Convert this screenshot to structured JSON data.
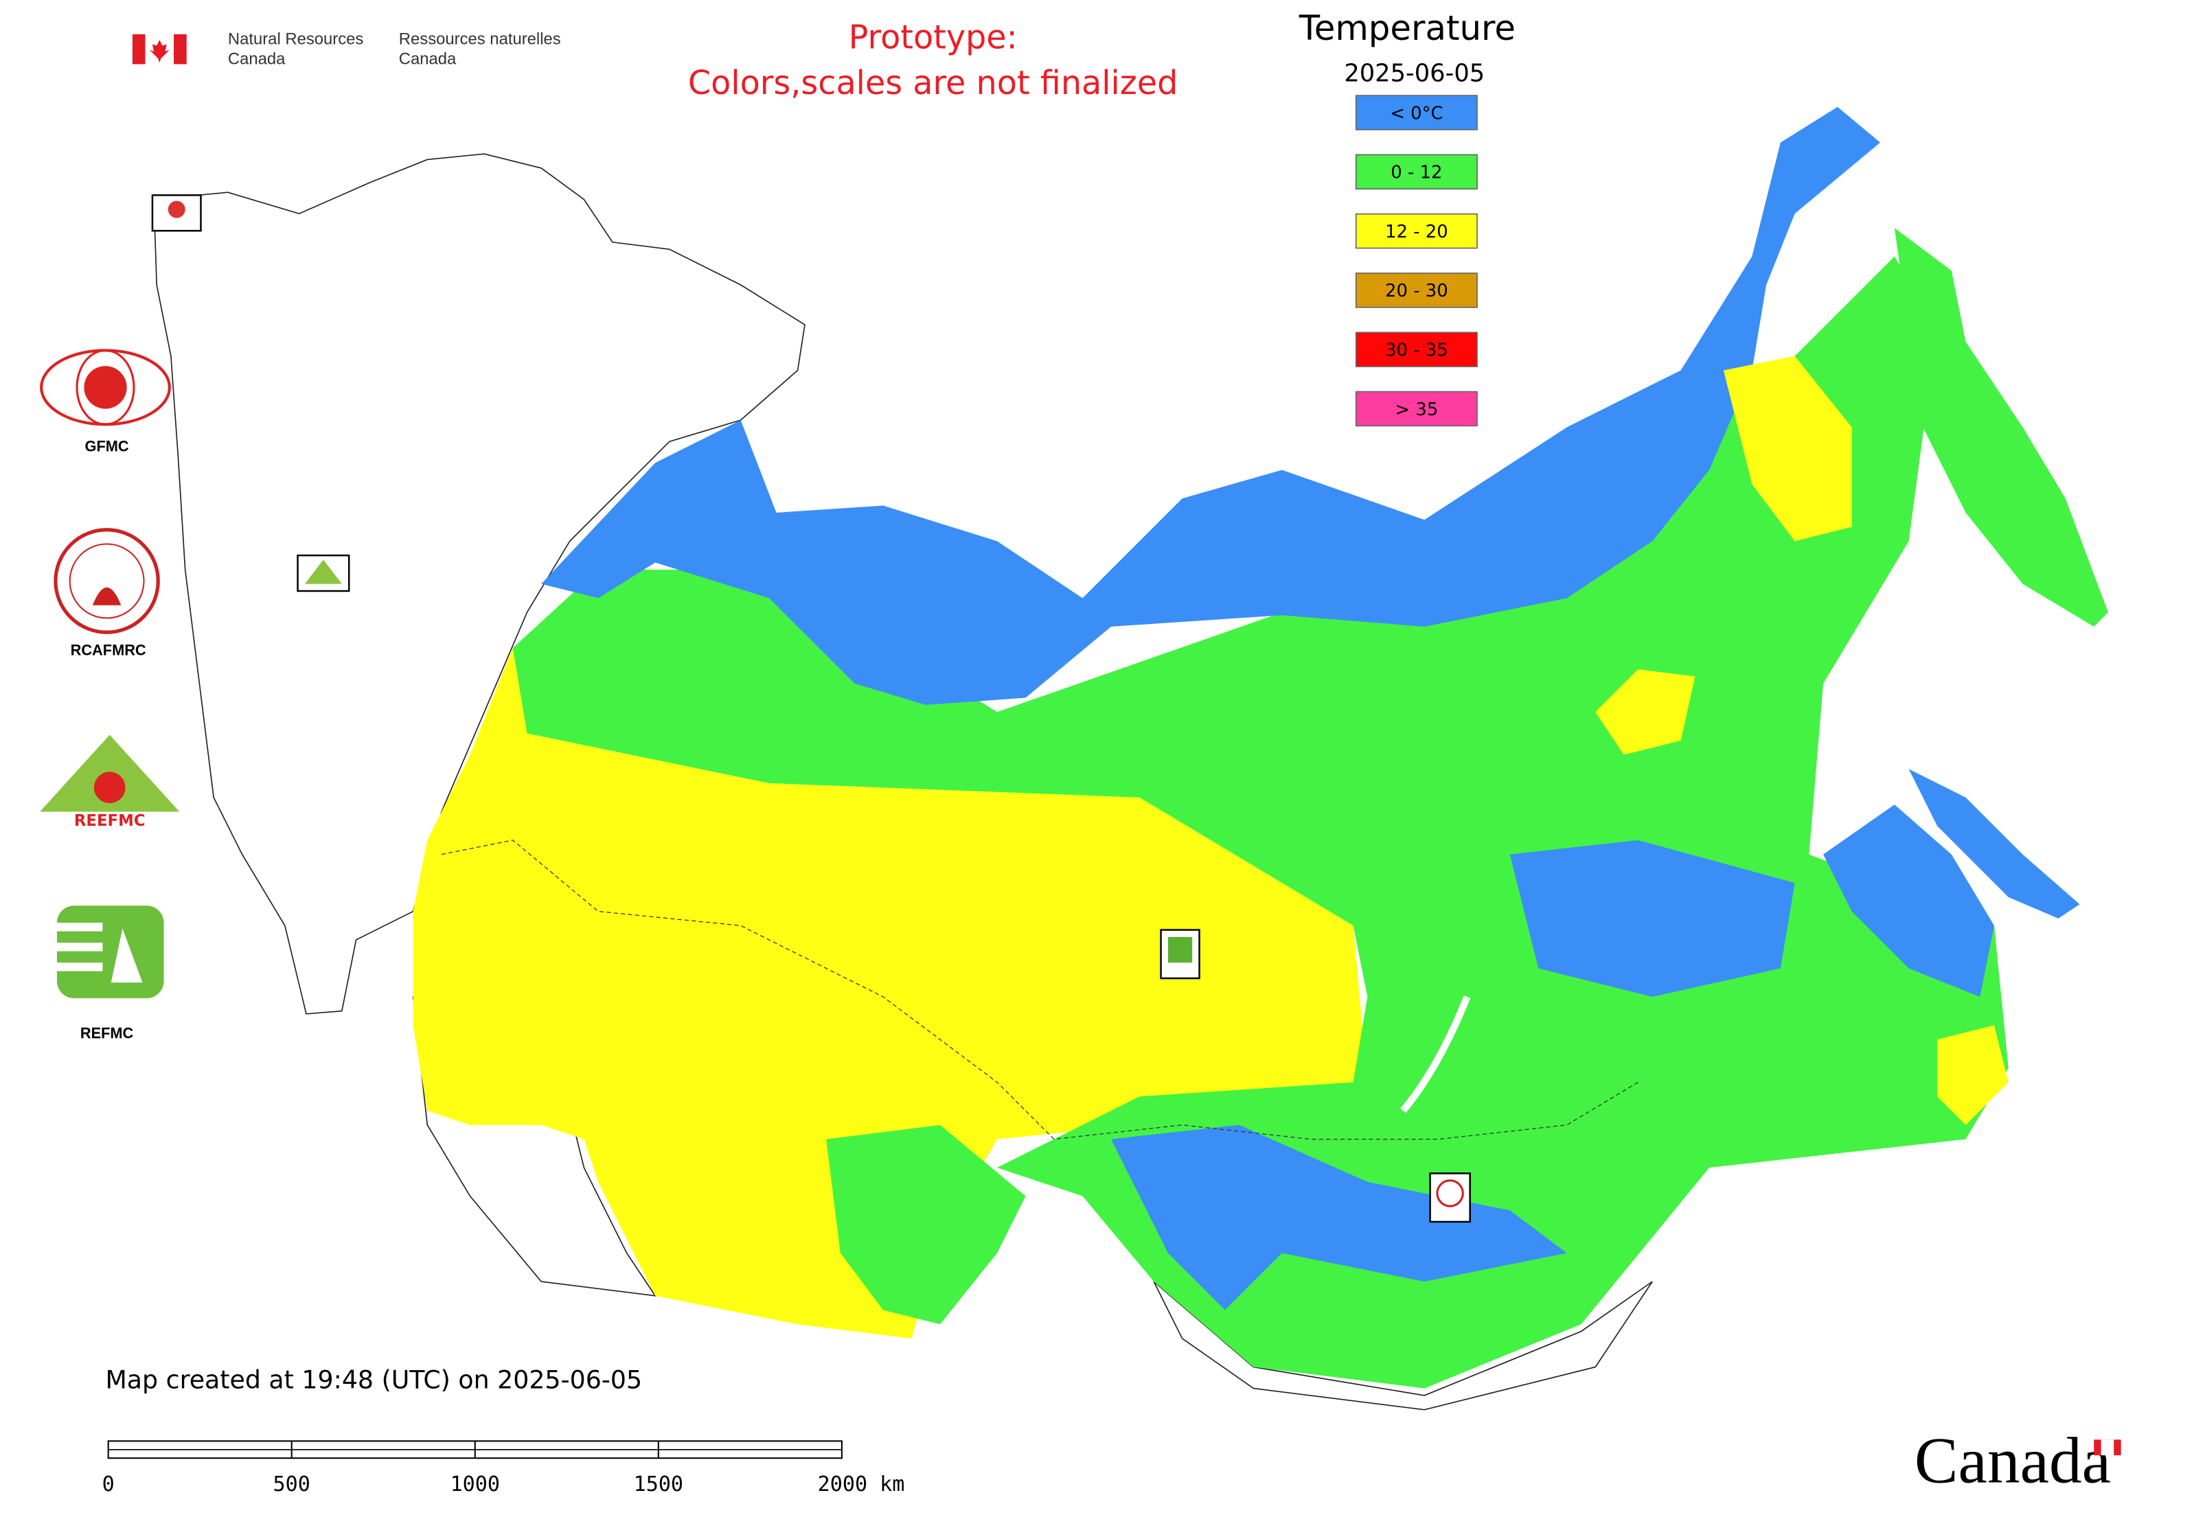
{
  "header": {
    "nrcan_en": [
      "Natural Resources",
      "Canada"
    ],
    "nrcan_fr": [
      "Ressources naturelles",
      "Canada"
    ]
  },
  "notice": [
    "Prototype:",
    "Colors,scales are not finalized"
  ],
  "legend": {
    "title": "Temperature",
    "date": "2025-06-05",
    "items": [
      {
        "label": "< 0°C",
        "color": "#3a8ef6"
      },
      {
        "label": "0 - 12",
        "color": "#44f244"
      },
      {
        "label": "12 - 20",
        "color": "#ffff14"
      },
      {
        "label": "20 - 30",
        "color": "#d99a08"
      },
      {
        "label": "30 - 35",
        "color": "#ff0606"
      },
      {
        "label": "> 35",
        "color": "#ff3ca0"
      }
    ]
  },
  "logos": [
    "GFMC",
    "RCAFMRC",
    "REFMC"
  ],
  "footer": "Map created at 19:48 (UTC) on 2025-06-05",
  "scale_bar": {
    "labels": [
      "0",
      "500",
      "1000",
      "1500",
      "2000 km"
    ]
  },
  "wordmark": "Canada"
}
